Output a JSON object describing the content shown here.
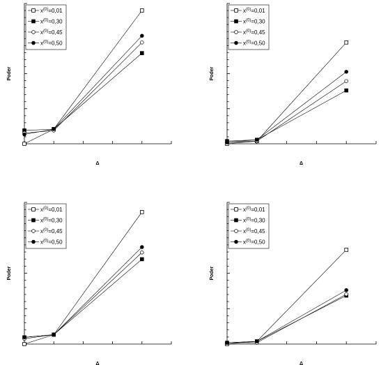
{
  "chart_data": [
    {
      "type": "line",
      "xlabel": "Δ",
      "ylabel": "Poder",
      "x": [
        0,
        1,
        4
      ],
      "ylim": [
        0,
        1
      ],
      "series": [
        {
          "name": "x^(0)=0,01",
          "marker": "square-open",
          "values": [
            0.0,
            0.11,
            1.0
          ]
        },
        {
          "name": "x^(0)=0,30",
          "marker": "square-filled",
          "values": [
            0.1,
            0.11,
            0.68
          ]
        },
        {
          "name": "x^(0)=0,45",
          "marker": "circle-open",
          "values": [
            0.08,
            0.1,
            0.76
          ]
        },
        {
          "name": "x^(0)=0,50",
          "marker": "circle-filled",
          "values": [
            0.07,
            0.11,
            0.81
          ]
        }
      ]
    },
    {
      "type": "line",
      "xlabel": "Δ",
      "ylabel": "Poder",
      "x": [
        0,
        1,
        4
      ],
      "ylim": [
        0,
        1
      ],
      "series": [
        {
          "name": "x^(0)=0,01",
          "marker": "square-open",
          "values": [
            0.0,
            0.02,
            0.76
          ]
        },
        {
          "name": "x^(0)=0,30",
          "marker": "square-filled",
          "values": [
            0.02,
            0.03,
            0.4
          ]
        },
        {
          "name": "x^(0)=0,45",
          "marker": "circle-open",
          "values": [
            0.01,
            0.02,
            0.47
          ]
        },
        {
          "name": "x^(0)=0,50",
          "marker": "circle-filled",
          "values": [
            0.01,
            0.03,
            0.54
          ]
        }
      ]
    },
    {
      "type": "line",
      "xlabel": "Δ",
      "ylabel": "Poder",
      "x": [
        0,
        1,
        4
      ],
      "ylim": [
        0,
        1
      ],
      "series": [
        {
          "name": "x^(0)=0,01",
          "marker": "square-open",
          "values": [
            0.0,
            0.07,
            0.98
          ]
        },
        {
          "name": "x^(0)=0,30",
          "marker": "square-filled",
          "values": [
            0.05,
            0.07,
            0.63
          ]
        },
        {
          "name": "x^(0)=0,45",
          "marker": "circle-open",
          "values": [
            0.04,
            0.07,
            0.68
          ]
        },
        {
          "name": "x^(0)=0,50",
          "marker": "circle-filled",
          "values": [
            0.05,
            0.07,
            0.72
          ]
        }
      ]
    },
    {
      "type": "line",
      "xlabel": "Δ",
      "ylabel": "Poder",
      "x": [
        0,
        1,
        4
      ],
      "ylim": [
        0,
        1
      ],
      "series": [
        {
          "name": "x^(0)=0,01",
          "marker": "square-open",
          "values": [
            0.0,
            0.02,
            0.7
          ]
        },
        {
          "name": "x^(0)=0,30",
          "marker": "square-filled",
          "values": [
            0.01,
            0.02,
            0.36
          ]
        },
        {
          "name": "x^(0)=0,45",
          "marker": "circle-open",
          "values": [
            0.01,
            0.01,
            0.37
          ]
        },
        {
          "name": "x^(0)=0,50",
          "marker": "circle-filled",
          "values": [
            0.01,
            0.02,
            0.4
          ]
        }
      ]
    }
  ]
}
